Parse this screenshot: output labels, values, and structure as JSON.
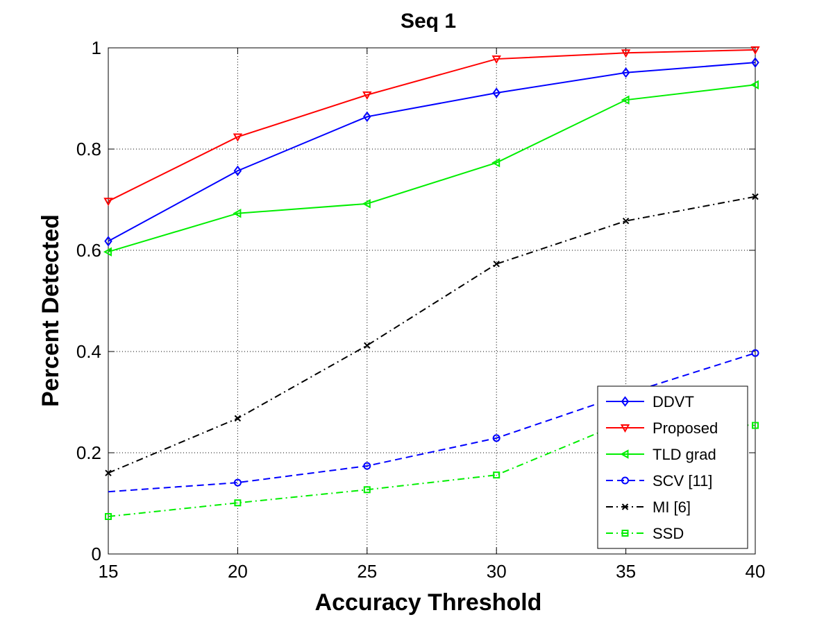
{
  "chart_data": {
    "type": "line",
    "title": "Seq 1",
    "xlabel": "Accuracy Threshold",
    "ylabel": "Percent Detected",
    "xlim": [
      15,
      40
    ],
    "ylim": [
      0,
      1
    ],
    "xticks": [
      15,
      20,
      25,
      30,
      35,
      40
    ],
    "yticks": [
      0,
      0.2,
      0.4,
      0.6,
      0.8,
      1
    ],
    "ytick_labels": [
      "0",
      "0.2",
      "0.4",
      "0.6",
      "0.8",
      "1"
    ],
    "grid": true,
    "legend_position": "bottom-right",
    "x": [
      15,
      20,
      25,
      30,
      35,
      40
    ],
    "series": [
      {
        "name": "DDVT",
        "color": "#0000ff",
        "dash": "solid",
        "marker": "diamond",
        "values": [
          0.618,
          0.757,
          0.864,
          0.911,
          0.951,
          0.971
        ]
      },
      {
        "name": "Proposed",
        "color": "#ff0000",
        "dash": "solid",
        "marker": "triangle-down",
        "values": [
          0.697,
          0.824,
          0.907,
          0.978,
          0.99,
          0.996
        ]
      },
      {
        "name": "TLD grad",
        "color": "#00ee00",
        "dash": "solid",
        "marker": "triangle-left",
        "values": [
          0.597,
          0.673,
          0.692,
          0.773,
          0.897,
          0.927
        ]
      },
      {
        "name": "SCV [11]",
        "color": "#0000ff",
        "dash": "dash",
        "marker": "circle",
        "values": [
          0.123,
          0.141,
          0.174,
          0.229,
          0.316,
          0.397
        ]
      },
      {
        "name": "MI [6]",
        "color": "#000000",
        "dash": "dashdot",
        "marker": "x",
        "values": [
          0.16,
          0.268,
          0.412,
          0.573,
          0.658,
          0.706
        ]
      },
      {
        "name": "SSD",
        "color": "#00ee00",
        "dash": "dashdot",
        "marker": "square",
        "values": [
          0.074,
          0.101,
          0.127,
          0.156,
          0.262,
          0.254
        ]
      }
    ],
    "marker_x": [
      [
        15,
        20,
        25,
        30,
        35,
        40
      ],
      [
        15,
        20,
        25,
        30,
        35,
        40
      ],
      [
        15,
        20,
        25,
        30,
        35,
        40
      ],
      [
        20,
        25,
        30,
        35,
        40
      ],
      [
        15,
        20,
        25,
        30,
        35,
        40
      ],
      [
        15,
        20,
        25,
        30,
        35,
        40
      ]
    ]
  }
}
